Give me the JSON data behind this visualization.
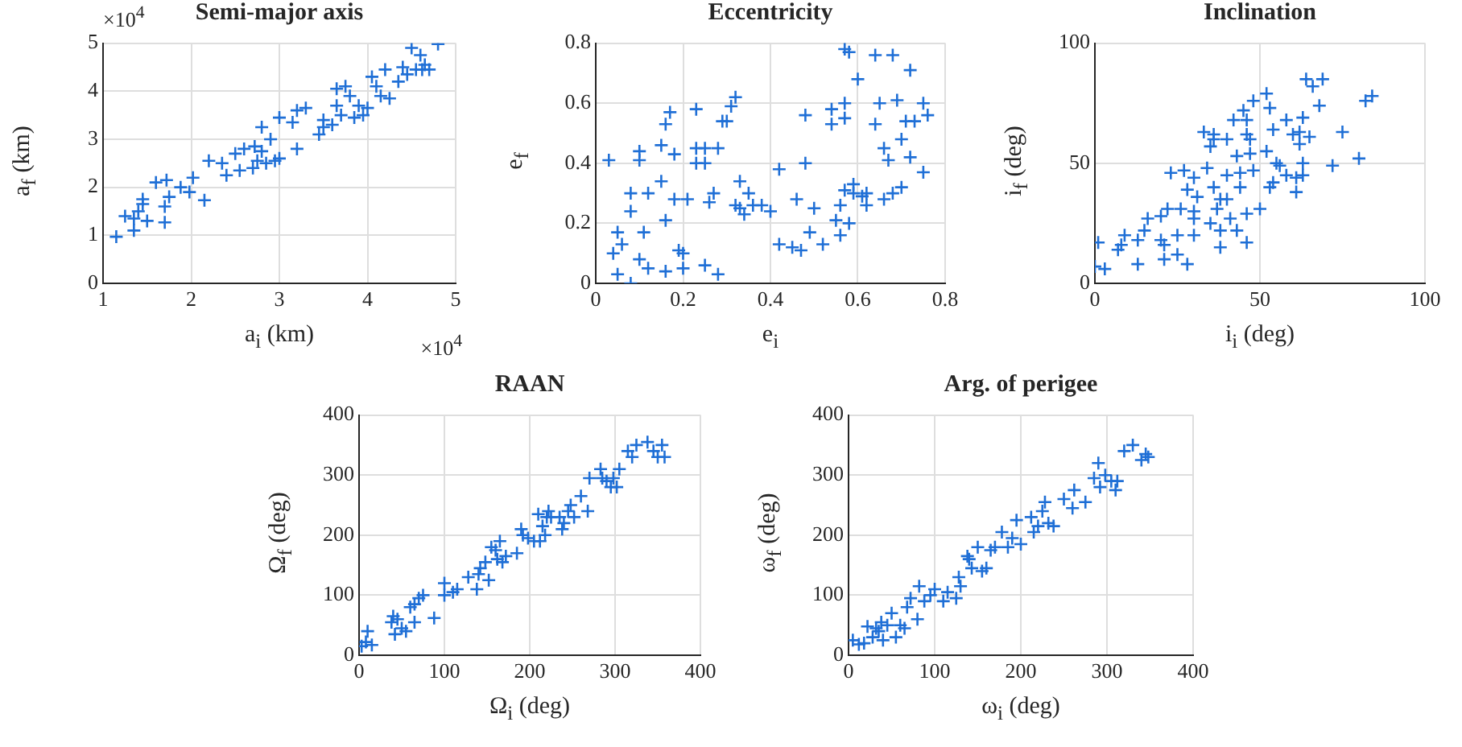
{
  "chart_data": [
    {
      "type": "scatter",
      "title": "Semi-major axis",
      "xlabel": "a$_{i}$ (km)",
      "ylabel": "a$_{f}$ (km)",
      "annotations": [
        "×10$^{4}$",
        "×10$^{4}$"
      ],
      "color": "#1f6fd6",
      "marker": "cross",
      "grid": true,
      "xlim": [
        1,
        5
      ],
      "ylim": [
        0,
        5
      ],
      "xticks": [
        1,
        2,
        3,
        4,
        5
      ],
      "yticks": [
        0,
        1,
        2,
        3,
        4,
        5
      ],
      "x": [
        1.15,
        1.25,
        1.35,
        1.4,
        1.45,
        1.45,
        1.35,
        1.5,
        1.6,
        1.7,
        1.75,
        1.72,
        1.7,
        1.88,
        1.98,
        2.02,
        2.15,
        2.2,
        2.35,
        2.4,
        2.5,
        2.55,
        2.6,
        2.7,
        2.72,
        2.75,
        2.8,
        2.8,
        2.85,
        2.9,
        2.95,
        3,
        3,
        3.15,
        3.2,
        3.3,
        3.2,
        3.45,
        3.5,
        3.5,
        3.6,
        3.65,
        3.65,
        3.7,
        3.75,
        3.8,
        3.85,
        3.9,
        3.95,
        4,
        4.05,
        4.1,
        4.15,
        4.2,
        4.25,
        4.35,
        4.4,
        4.5,
        4.55,
        4.6,
        4.62,
        4.7,
        4.8,
        4.45,
        4.65
      ],
      "values": [
        0.97,
        1.4,
        1.35,
        1.5,
        1.75,
        1.65,
        1.1,
        1.3,
        2.1,
        1.6,
        1.8,
        2.15,
        1.27,
        2,
        1.9,
        2.2,
        1.73,
        2.55,
        2.5,
        2.25,
        2.7,
        2.35,
        2.8,
        2.4,
        2.85,
        2.55,
        3.25,
        2.75,
        2.5,
        3,
        2.55,
        2.6,
        3.45,
        3.35,
        3.6,
        3.65,
        2.8,
        3.1,
        3.4,
        3.25,
        3.3,
        3.7,
        4.05,
        3.5,
        4.1,
        3.9,
        3.45,
        3.7,
        3.5,
        3.65,
        4.3,
        4.1,
        3.9,
        4.45,
        3.85,
        4.2,
        4.5,
        4.9,
        4.45,
        4.75,
        4.45,
        4.45,
        4.98,
        4.35,
        4.55
      ]
    },
    {
      "type": "scatter",
      "title": "Eccentricity",
      "xlabel": "e$_{i}$",
      "ylabel": "e$_{f}$",
      "color": "#1f6fd6",
      "marker": "cross",
      "grid": true,
      "xlim": [
        0,
        0.8
      ],
      "ylim": [
        0,
        0.8
      ],
      "xticks": [
        0,
        0.2,
        0.4,
        0.6,
        0.8
      ],
      "yticks": [
        0,
        0.2,
        0.4,
        0.6,
        0.8
      ],
      "x": [
        0.03,
        0.04,
        0.05,
        0.05,
        0.06,
        0.08,
        0.08,
        0.08,
        0.1,
        0.1,
        0.1,
        0.11,
        0.12,
        0.12,
        0.15,
        0.15,
        0.16,
        0.16,
        0.16,
        0.17,
        0.18,
        0.18,
        0.19,
        0.2,
        0.2,
        0.21,
        0.23,
        0.23,
        0.23,
        0.25,
        0.25,
        0.25,
        0.26,
        0.27,
        0.28,
        0.28,
        0.29,
        0.3,
        0.31,
        0.32,
        0.32,
        0.33,
        0.33,
        0.34,
        0.35,
        0.36,
        0.38,
        0.4,
        0.42,
        0.42,
        0.45,
        0.46,
        0.47,
        0.48,
        0.48,
        0.49,
        0.5,
        0.52,
        0.54,
        0.54,
        0.55,
        0.56,
        0.56,
        0.57,
        0.57,
        0.57,
        0.57,
        0.58,
        0.58,
        0.59,
        0.59,
        0.6,
        0.61,
        0.62,
        0.62,
        0.64,
        0.64,
        0.65,
        0.66,
        0.66,
        0.67,
        0.68,
        0.68,
        0.69,
        0.7,
        0.7,
        0.71,
        0.72,
        0.72,
        0.73,
        0.75,
        0.75,
        0.76
      ],
      "values": [
        0.41,
        0.1,
        0.17,
        0.03,
        0.13,
        0.3,
        0.0,
        0.24,
        0.44,
        0.41,
        0.08,
        0.17,
        0.3,
        0.05,
        0.46,
        0.34,
        0.53,
        0.21,
        0.04,
        0.57,
        0.43,
        0.28,
        0.11,
        0.05,
        0.1,
        0.28,
        0.58,
        0.45,
        0.4,
        0.45,
        0.4,
        0.06,
        0.27,
        0.3,
        0.45,
        0.03,
        0.54,
        0.54,
        0.59,
        0.26,
        0.62,
        0.34,
        0.25,
        0.23,
        0.3,
        0.26,
        0.26,
        0.24,
        0.13,
        0.38,
        0.12,
        0.28,
        0.11,
        0.56,
        0.4,
        0.17,
        0.25,
        0.13,
        0.53,
        0.58,
        0.21,
        0.26,
        0.16,
        0.78,
        0.6,
        0.55,
        0.31,
        0.2,
        0.77,
        0.3,
        0.33,
        0.68,
        0.29,
        0.26,
        0.3,
        0.76,
        0.53,
        0.6,
        0.45,
        0.28,
        0.41,
        0.76,
        0.3,
        0.61,
        0.48,
        0.32,
        0.54,
        0.71,
        0.42,
        0.54,
        0.6,
        0.37,
        0.56
      ]
    },
    {
      "type": "scatter",
      "title": "Inclination",
      "xlabel": "i$_{i}$ (deg)",
      "ylabel": "i$_{f}$ (deg)",
      "color": "#1f6fd6",
      "marker": "cross",
      "grid": true,
      "xlim": [
        0,
        100
      ],
      "ylim": [
        0,
        100
      ],
      "xticks": [
        0,
        50,
        100
      ],
      "yticks": [
        0,
        50,
        100
      ],
      "x": [
        1,
        0,
        3,
        7,
        8,
        9,
        13,
        13,
        15,
        16,
        20,
        20,
        21,
        21,
        22,
        23,
        25,
        25,
        26,
        27,
        28,
        28,
        30,
        30,
        30,
        30,
        31,
        33,
        34,
        35,
        35,
        36,
        36,
        36,
        37,
        38,
        38,
        38,
        40,
        40,
        40,
        41,
        42,
        43,
        43,
        44,
        44,
        45,
        46,
        46,
        46,
        46,
        47,
        47,
        48,
        48,
        50,
        52,
        52,
        53,
        53,
        54,
        54,
        55,
        56,
        58,
        58,
        60,
        61,
        61,
        62,
        62,
        63,
        63,
        63,
        64,
        65,
        66,
        68,
        69,
        72,
        75,
        80,
        82,
        84
      ],
      "values": [
        17,
        7,
        6,
        14,
        16,
        20,
        18,
        8,
        22,
        27,
        28,
        18,
        16,
        10,
        31,
        46,
        20,
        12,
        31,
        47,
        39,
        8,
        30,
        27,
        20,
        44,
        36,
        63,
        48,
        25,
        57,
        62,
        60,
        40,
        31,
        22,
        15,
        35,
        60,
        35,
        45,
        27,
        68,
        53,
        22,
        40,
        46,
        72,
        17,
        68,
        62,
        29,
        60,
        54,
        47,
        76,
        31,
        79,
        55,
        40,
        73,
        64,
        42,
        50,
        49,
        45,
        68,
        62,
        38,
        44,
        63,
        58,
        69,
        50,
        45,
        85,
        61,
        82,
        74,
        85,
        49,
        63,
        52,
        76,
        78
      ]
    },
    {
      "type": "scatter",
      "title": "RAAN",
      "xlabel": "Ω$_{i}$ (deg)",
      "ylabel": "Ω$_{f}$ (deg)",
      "color": "#1f6fd6",
      "marker": "cross",
      "grid": true,
      "xlim": [
        0,
        400
      ],
      "ylim": [
        0,
        400
      ],
      "xticks": [
        0,
        100,
        200,
        300,
        400
      ],
      "yticks": [
        0,
        100,
        200,
        300,
        400
      ],
      "x": [
        3,
        8,
        10,
        15,
        38,
        40,
        42,
        45,
        50,
        55,
        60,
        65,
        65,
        70,
        75,
        88,
        100,
        100,
        110,
        115,
        128,
        138,
        140,
        142,
        148,
        152,
        155,
        160,
        162,
        165,
        168,
        172,
        185,
        190,
        192,
        198,
        205,
        210,
        212,
        215,
        218,
        220,
        222,
        225,
        235,
        238,
        240,
        245,
        248,
        252,
        260,
        268,
        270,
        283,
        285,
        290,
        295,
        298,
        302,
        305,
        315,
        320,
        325,
        338,
        345,
        350,
        355,
        358
      ],
      "values": [
        15,
        22,
        40,
        17,
        55,
        65,
        35,
        60,
        45,
        40,
        80,
        55,
        85,
        95,
        100,
        62,
        120,
        100,
        105,
        110,
        130,
        110,
        135,
        145,
        155,
        125,
        180,
        175,
        160,
        190,
        155,
        165,
        170,
        210,
        200,
        195,
        190,
        235,
        190,
        215,
        200,
        230,
        240,
        230,
        230,
        210,
        220,
        240,
        250,
        230,
        265,
        240,
        295,
        310,
        295,
        290,
        280,
        295,
        280,
        310,
        340,
        330,
        350,
        355,
        340,
        330,
        350,
        330
      ]
    },
    {
      "type": "scatter",
      "title": "Arg. of perigee",
      "xlabel": "ω$_{i}$ (deg)",
      "ylabel": "ω$_{f}$ (deg)",
      "color": "#1f6fd6",
      "marker": "cross",
      "grid": true,
      "xlim": [
        0,
        400
      ],
      "ylim": [
        0,
        400
      ],
      "xticks": [
        0,
        100,
        200,
        300,
        400
      ],
      "yticks": [
        0,
        100,
        200,
        300,
        400
      ],
      "x": [
        5,
        12,
        18,
        22,
        28,
        32,
        35,
        38,
        40,
        45,
        50,
        55,
        60,
        65,
        68,
        72,
        80,
        82,
        88,
        95,
        100,
        110,
        115,
        125,
        128,
        130,
        138,
        140,
        143,
        150,
        155,
        160,
        165,
        170,
        178,
        185,
        190,
        195,
        200,
        212,
        215,
        220,
        225,
        228,
        232,
        238,
        250,
        260,
        262,
        275,
        285,
        290,
        292,
        298,
        305,
        310,
        312,
        320,
        330,
        340,
        345,
        348
      ],
      "values": [
        25,
        18,
        20,
        48,
        30,
        45,
        40,
        55,
        25,
        50,
        70,
        30,
        50,
        45,
        80,
        95,
        60,
        115,
        90,
        100,
        110,
        90,
        105,
        95,
        130,
        115,
        165,
        160,
        145,
        180,
        140,
        145,
        175,
        180,
        205,
        180,
        195,
        225,
        185,
        230,
        205,
        215,
        240,
        255,
        220,
        215,
        260,
        245,
        275,
        255,
        295,
        320,
        280,
        300,
        290,
        275,
        290,
        340,
        350,
        325,
        335,
        330
      ]
    }
  ]
}
